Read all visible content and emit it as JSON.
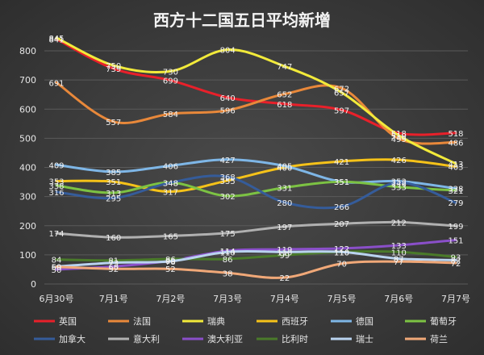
{
  "chart_data": {
    "type": "line",
    "title": "西方十二国五日平均新增",
    "categories": [
      "6月30号",
      "7月1号",
      "7月2号",
      "7月3号",
      "7月4号",
      "7月5号",
      "7月6号",
      "7月7号"
    ],
    "ylim": [
      0,
      850
    ],
    "yticks": [
      0,
      100,
      200,
      300,
      400,
      500,
      600,
      700,
      800
    ],
    "grid": true,
    "legend_position": "bottom",
    "series": [
      {
        "name": "英国",
        "color": "#e8202a",
        "values": [
          841,
          739,
          699,
          640,
          618,
          597,
          518,
          518
        ]
      },
      {
        "name": "法国",
        "color": "#e8883a",
        "values": [
          691,
          557,
          584,
          596,
          652,
          672,
          499,
          486
        ]
      },
      {
        "name": "瑞典",
        "color": "#f2ea3a",
        "values": [
          845,
          750,
          730,
          804,
          747,
          657,
          510,
          413
        ]
      },
      {
        "name": "西班牙",
        "color": "#f5c219",
        "values": [
          353,
          351,
          317,
          355,
          400,
          421,
          426,
          403
        ]
      },
      {
        "name": "德国",
        "color": "#7eb6e6",
        "values": [
          409,
          385,
          406,
          427,
          405,
          351,
          353,
          328
        ]
      },
      {
        "name": "葡萄牙",
        "color": "#7cc243",
        "values": [
          338,
          313,
          348,
          302,
          331,
          351,
          333,
          321
        ]
      },
      {
        "name": "加拿大",
        "color": "#355c9a",
        "values": [
          316,
          295,
          348,
          368,
          280,
          266,
          348,
          279
        ]
      },
      {
        "name": "意大利",
        "color": "#b0b0b0",
        "values": [
          174,
          160,
          165,
          175,
          197,
          207,
          212,
          199
        ]
      },
      {
        "name": "澳大利亚",
        "color": "#8a4fc9",
        "values": [
          50,
          60,
          80,
          114,
          119,
          122,
          133,
          151
        ]
      },
      {
        "name": "比利时",
        "color": "#4a7a2a",
        "values": [
          84,
          81,
          86,
          86,
          99,
          110,
          110,
          93
        ]
      },
      {
        "name": "瑞士",
        "color": "#b9d3ef",
        "values": [
          60,
          73,
          78,
          110,
          110,
          110,
          87,
          82
        ]
      },
      {
        "name": "荷兰",
        "color": "#f0a878",
        "values": [
          59,
          52,
          52,
          38,
          22,
          70,
          77,
          72
        ]
      }
    ]
  }
}
